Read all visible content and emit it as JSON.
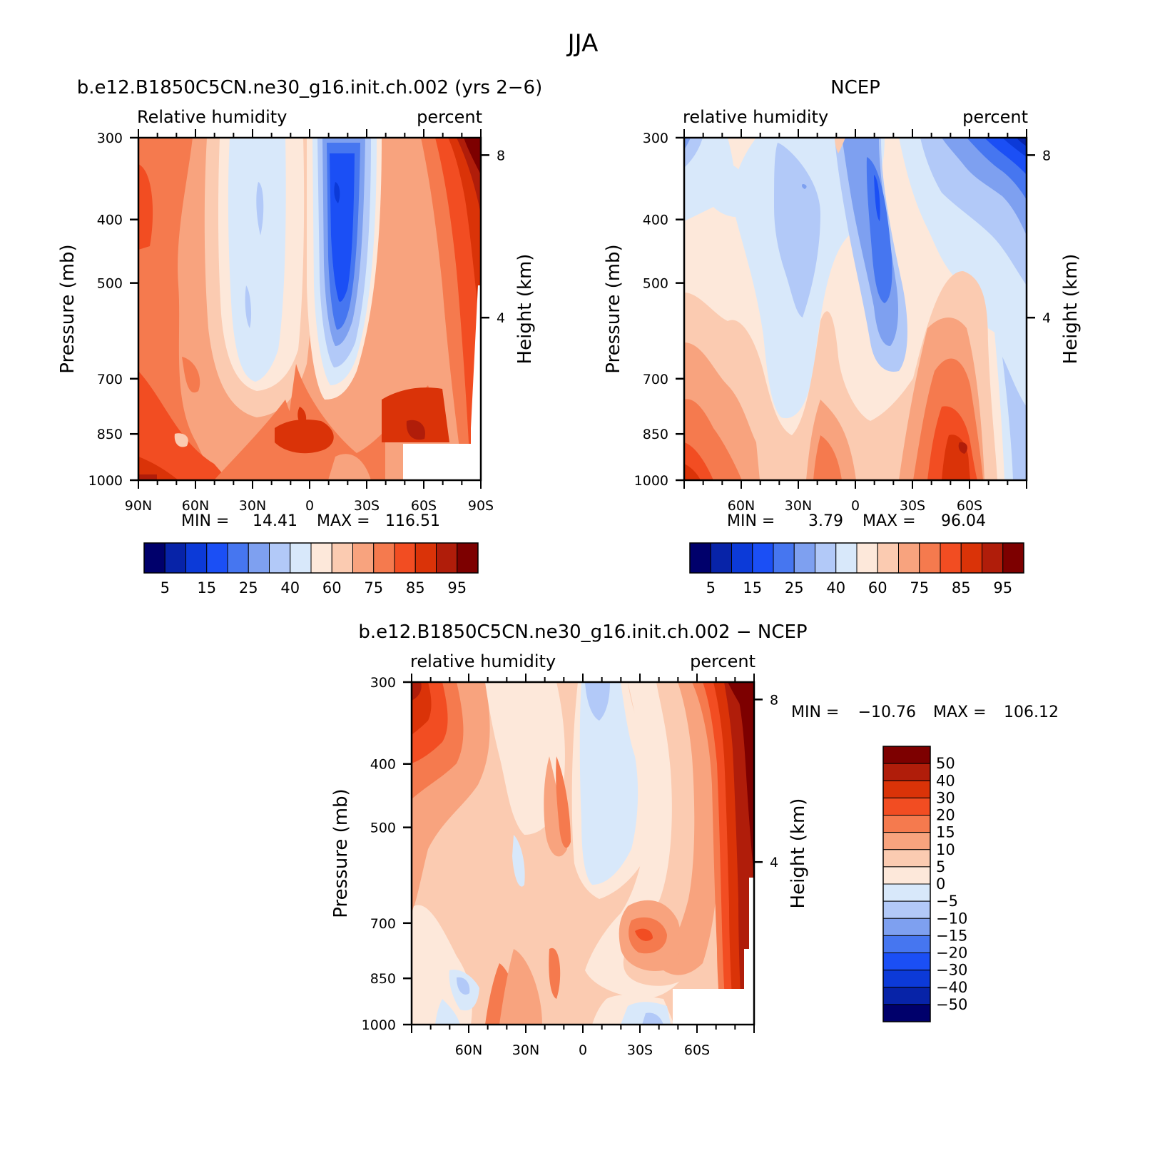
{
  "figure_title": "JJA",
  "chart_data": [
    {
      "type": "heatmap",
      "title": "b.e12.B1850C5CN.ne30_g16.init.ch.002 (yrs 2−6)",
      "left_string": "Relative humidity",
      "right_string": "percent",
      "ylabel": "Pressure (mb)",
      "y2label": "Height (km)",
      "x_ticks": [
        "90N",
        "60N",
        "30N",
        "0",
        "30S",
        "60S",
        "90S"
      ],
      "y_ticks": [
        "300",
        "400",
        "500",
        "700",
        "850",
        "1000"
      ],
      "y2_ticks": [
        "8",
        "4"
      ],
      "stats": {
        "min_label": "MIN =",
        "min": "14.41",
        "max_label": "MAX =",
        "max": "116.51"
      },
      "colorbar_labels": [
        "5",
        "15",
        "25",
        "40",
        "60",
        "75",
        "85",
        "95"
      ]
    },
    {
      "type": "heatmap",
      "title": "NCEP",
      "left_string": "relative humidity",
      "right_string": "percent",
      "ylabel": "Pressure (mb)",
      "y2label": "Height (km)",
      "x_ticks": [
        "60N",
        "30N",
        "0",
        "30S",
        "60S"
      ],
      "y_ticks": [
        "300",
        "400",
        "500",
        "700",
        "850",
        "1000"
      ],
      "y2_ticks": [
        "8",
        "4"
      ],
      "stats": {
        "min_label": "MIN =",
        "min": "3.79",
        "max_label": "MAX =",
        "max": "96.04"
      },
      "colorbar_labels": [
        "5",
        "15",
        "25",
        "40",
        "60",
        "75",
        "85",
        "95"
      ]
    },
    {
      "type": "heatmap",
      "title": "b.e12.B1850C5CN.ne30_g16.init.ch.002 − NCEP",
      "left_string": "relative humidity",
      "right_string": "percent",
      "ylabel": "Pressure (mb)",
      "y2label": "Height (km)",
      "x_ticks": [
        "60N",
        "30N",
        "0",
        "30S",
        "60S"
      ],
      "y_ticks": [
        "300",
        "400",
        "500",
        "700",
        "850",
        "1000"
      ],
      "y2_ticks": [
        "8",
        "4"
      ],
      "stats": {
        "min_label": "MIN =",
        "min": "−10.76",
        "max_label": "MAX =",
        "max": "106.12"
      },
      "colorbar_labels": [
        "50",
        "40",
        "30",
        "20",
        "15",
        "10",
        "5",
        "0",
        "−5",
        "−10",
        "−15",
        "−20",
        "−30",
        "−40",
        "−50"
      ]
    }
  ],
  "colors": {
    "abs_scale": [
      "#00006b",
      "#0723a8",
      "#0c3ad8",
      "#1b4ff5",
      "#4676f0",
      "#7ea0f0",
      "#b2c9f8",
      "#d8e8fa",
      "#fde8da",
      "#fbcbb1",
      "#f8a37e",
      "#f57a4e",
      "#f24d22",
      "#da3308",
      "#b01d0a",
      "#7d0000"
    ],
    "diff_scale": [
      "#7d0000",
      "#b01d0a",
      "#da3308",
      "#f24d22",
      "#f57a4e",
      "#f8a37e",
      "#fbcbb1",
      "#fde8da",
      "#d8e8fa",
      "#b2c9f8",
      "#7ea0f0",
      "#4676f0",
      "#1b4ff5",
      "#0c3ad8",
      "#0723a8",
      "#00006b"
    ]
  }
}
